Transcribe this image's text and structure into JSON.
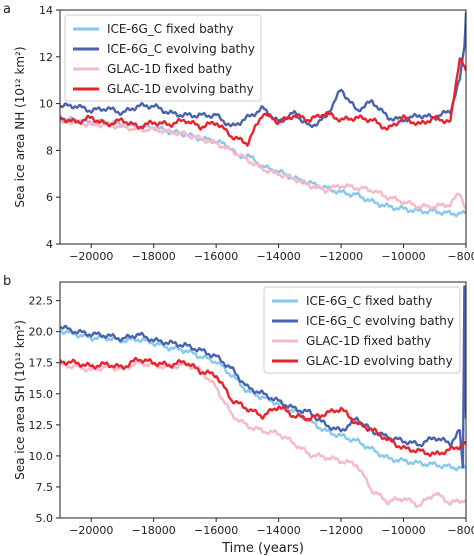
{
  "figure": {
    "panel_a_label": "a",
    "panel_b_label": "b"
  },
  "chart_data": [
    {
      "type": "line",
      "panel": "a",
      "ylabel": "Sea ice area NH (10¹² km²)",
      "xlabel": "",
      "xlim": [
        -21000,
        -8000
      ],
      "ylim": [
        4,
        14
      ],
      "xticks": [
        -20000,
        -18000,
        -16000,
        -14000,
        -12000,
        -10000,
        -8000
      ],
      "yticks": [
        4,
        6,
        8,
        10,
        12,
        14
      ],
      "legend_position": "upper-left",
      "series": [
        {
          "name": "ICE-6G_C fixed bathy",
          "color": "#87c8ee",
          "x": [
            -21000,
            -20500,
            -20000,
            -19500,
            -19000,
            -18500,
            -18000,
            -17500,
            -17000,
            -16500,
            -16000,
            -15500,
            -15300,
            -15000,
            -14500,
            -14000,
            -13500,
            -13000,
            -12500,
            -12000,
            -11500,
            -11000,
            -10500,
            -10000,
            -9500,
            -9000,
            -8500,
            -8000
          ],
          "values": [
            9.3,
            9.3,
            9.2,
            9.2,
            9.1,
            9.0,
            9.0,
            8.8,
            8.7,
            8.5,
            8.4,
            8.1,
            7.7,
            7.8,
            7.3,
            7.1,
            6.8,
            6.6,
            6.4,
            6.2,
            6.1,
            5.8,
            5.6,
            5.5,
            5.4,
            5.4,
            5.3,
            5.3
          ]
        },
        {
          "name": "ICE-6G_C evolving bathy",
          "color": "#4a62b0",
          "x": [
            -21000,
            -20500,
            -20000,
            -19500,
            -19000,
            -18500,
            -18000,
            -17500,
            -17000,
            -16500,
            -16000,
            -15500,
            -15000,
            -14500,
            -14000,
            -13500,
            -13000,
            -12500,
            -12000,
            -11500,
            -11000,
            -10500,
            -10000,
            -9500,
            -9000,
            -8500,
            -8200,
            -8050,
            -8000
          ],
          "values": [
            9.9,
            9.9,
            9.7,
            9.8,
            9.6,
            9.9,
            9.9,
            9.6,
            9.5,
            9.5,
            9.5,
            9.0,
            9.4,
            9.8,
            9.2,
            9.6,
            9.0,
            9.4,
            10.6,
            9.7,
            10.1,
            9.4,
            9.3,
            9.5,
            9.4,
            9.7,
            11.0,
            12.5,
            13.9
          ]
        },
        {
          "name": "GLAC-1D fixed bathy",
          "color": "#f7b9c7",
          "x": [
            -21000,
            -20500,
            -20000,
            -19500,
            -19000,
            -18500,
            -18000,
            -17500,
            -17000,
            -16500,
            -16000,
            -15500,
            -15000,
            -14500,
            -14000,
            -13500,
            -13000,
            -12500,
            -12000,
            -11500,
            -11000,
            -10500,
            -10000,
            -9500,
            -9000,
            -8500,
            -8200,
            -8000
          ],
          "values": [
            9.3,
            9.2,
            9.1,
            9.1,
            9.0,
            8.9,
            8.9,
            8.8,
            8.7,
            8.5,
            8.3,
            8.0,
            7.6,
            7.2,
            7.0,
            6.8,
            6.5,
            6.3,
            6.5,
            6.4,
            6.3,
            6.0,
            5.8,
            5.6,
            5.6,
            5.7,
            6.2,
            5.5
          ]
        },
        {
          "name": "GLAC-1D evolving bathy",
          "color": "#e8232c",
          "x": [
            -21000,
            -20500,
            -20000,
            -19500,
            -19000,
            -18500,
            -18000,
            -17500,
            -17000,
            -16500,
            -16000,
            -15500,
            -15000,
            -14500,
            -14000,
            -13500,
            -13000,
            -12500,
            -12000,
            -11500,
            -11000,
            -10500,
            -10000,
            -9500,
            -9000,
            -8500,
            -8200,
            -8000
          ],
          "values": [
            9.4,
            9.2,
            9.4,
            9.1,
            9.3,
            9.0,
            9.2,
            9.1,
            9.3,
            9.0,
            9.2,
            8.6,
            8.3,
            9.6,
            9.2,
            9.5,
            9.3,
            9.6,
            9.3,
            9.4,
            9.3,
            8.9,
            9.4,
            9.1,
            9.4,
            9.2,
            12.0,
            11.4
          ]
        }
      ]
    },
    {
      "type": "line",
      "panel": "b",
      "ylabel": "Sea ice area SH (10¹² km²)",
      "xlabel": "Time (years)",
      "xlim": [
        -21000,
        -8000
      ],
      "ylim": [
        5.0,
        24.0
      ],
      "xticks": [
        -20000,
        -18000,
        -16000,
        -14000,
        -12000,
        -10000,
        -8000
      ],
      "yticks": [
        5.0,
        7.5,
        10.0,
        12.5,
        15.0,
        17.5,
        20.0,
        22.5
      ],
      "ytick_labels": [
        "5.0",
        "7.5",
        "10.0",
        "12.5",
        "15.0",
        "17.5",
        "20.0",
        "22.5"
      ],
      "legend_position": "upper-right",
      "series": [
        {
          "name": "ICE-6G_C fixed bathy",
          "color": "#87c8ee",
          "x": [
            -21000,
            -20500,
            -20000,
            -19500,
            -19000,
            -18500,
            -18000,
            -17500,
            -17000,
            -16500,
            -16000,
            -15500,
            -15000,
            -14500,
            -14000,
            -13500,
            -13000,
            -12500,
            -12000,
            -11500,
            -11000,
            -10500,
            -10000,
            -9500,
            -9000,
            -8500,
            -8000
          ],
          "values": [
            20.1,
            19.8,
            19.5,
            19.5,
            19.3,
            19.4,
            19.1,
            18.7,
            18.5,
            18.0,
            17.6,
            16.5,
            15.2,
            14.7,
            14.2,
            13.6,
            12.8,
            12.0,
            11.6,
            11.2,
            10.5,
            9.8,
            9.6,
            9.4,
            9.3,
            9.1,
            9.0
          ]
        },
        {
          "name": "ICE-6G_C evolving bathy",
          "color": "#4a62b0",
          "x": [
            -21000,
            -20500,
            -20000,
            -19500,
            -19000,
            -18500,
            -18000,
            -17500,
            -17000,
            -16500,
            -16000,
            -15500,
            -15000,
            -14500,
            -14000,
            -13500,
            -13000,
            -12500,
            -12000,
            -11500,
            -11000,
            -10500,
            -10000,
            -9500,
            -9000,
            -8500,
            -8200,
            -8100,
            -8050,
            -8000
          ],
          "values": [
            20.4,
            20.0,
            19.8,
            19.7,
            19.4,
            19.8,
            19.3,
            19.1,
            18.9,
            18.5,
            18.0,
            17.0,
            15.5,
            15.0,
            14.4,
            13.8,
            13.5,
            12.5,
            12.0,
            13.0,
            12.0,
            11.5,
            11.2,
            10.9,
            11.5,
            11.0,
            12.0,
            9.0,
            23.8,
            13.0
          ]
        },
        {
          "name": "GLAC-1D fixed bathy",
          "color": "#f7b9c7",
          "x": [
            -21000,
            -20500,
            -20000,
            -19500,
            -19000,
            -18500,
            -18000,
            -17500,
            -17000,
            -16500,
            -16000,
            -15500,
            -15000,
            -14500,
            -14000,
            -13500,
            -13000,
            -12500,
            -12000,
            -11500,
            -11000,
            -10500,
            -10000,
            -9500,
            -9000,
            -8500,
            -8000
          ],
          "values": [
            17.3,
            17.2,
            16.9,
            17.2,
            17.0,
            17.5,
            17.3,
            17.1,
            17.4,
            16.9,
            15.5,
            13.3,
            12.4,
            12.0,
            11.8,
            11.0,
            10.1,
            9.9,
            9.6,
            9.3,
            7.2,
            6.3,
            6.6,
            6.0,
            7.0,
            6.2,
            6.5
          ]
        },
        {
          "name": "GLAC-1D evolving bathy",
          "color": "#e8232c",
          "x": [
            -21000,
            -20500,
            -20000,
            -19500,
            -19000,
            -18500,
            -18000,
            -17500,
            -17000,
            -16500,
            -16000,
            -15500,
            -15000,
            -14500,
            -14000,
            -13500,
            -13000,
            -12500,
            -12000,
            -11500,
            -11000,
            -10500,
            -10000,
            -9500,
            -9000,
            -8500,
            -8000
          ],
          "values": [
            17.6,
            17.5,
            17.2,
            17.4,
            17.1,
            17.8,
            17.5,
            17.3,
            17.6,
            16.8,
            16.5,
            14.5,
            13.8,
            13.2,
            14.0,
            13.2,
            13.0,
            13.4,
            13.8,
            12.6,
            12.1,
            11.3,
            10.6,
            10.4,
            10.1,
            10.5,
            11.0
          ]
        }
      ]
    }
  ]
}
